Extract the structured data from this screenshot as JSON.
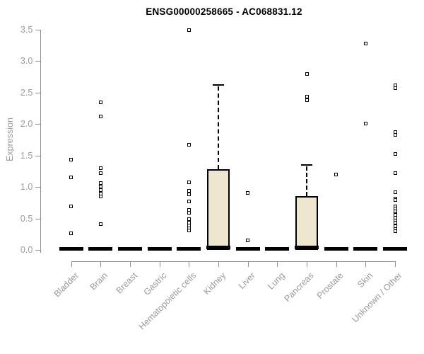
{
  "chart_data": {
    "type": "boxplot",
    "title": "ENSG00000258665 - AC068831.12",
    "ylabel": "Expression",
    "xlabel": "",
    "ylim": [
      0,
      3.5
    ],
    "ytick_labels": [
      "0.0",
      "0.5",
      "1.0",
      "1.5",
      "2.0",
      "2.5",
      "3.0",
      "3.5"
    ],
    "ytick_values": [
      0,
      0.5,
      1,
      1.5,
      2,
      2.5,
      3,
      3.5
    ],
    "grid": false,
    "legend": "none",
    "box_fill_color": "#EDE7CF",
    "box_border_color": "#000000",
    "axis_color": "#8f8f8f",
    "label_color": "#9a9a9a",
    "categories": [
      "Bladder",
      "Brain",
      "Breast",
      "Gastric",
      "Hematopoietic cells",
      "Kidney",
      "Liver",
      "Lung",
      "Pancreas",
      "Prostate",
      "Skin",
      "Unknown / Other"
    ],
    "series": [
      {
        "category": "Bladder",
        "median": 0,
        "q1": 0,
        "q3": 0,
        "whisker_low": 0,
        "whisker_high": 0,
        "points": [
          1.43,
          1.15,
          0.69,
          0.27
        ]
      },
      {
        "category": "Brain",
        "median": 0,
        "q1": 0,
        "q3": 0,
        "whisker_low": 0,
        "whisker_high": 0,
        "points": [
          2.35,
          2.12,
          1.3,
          1.22,
          1.07,
          1.01,
          0.95,
          0.9,
          0.85,
          0.41
        ]
      },
      {
        "category": "Breast",
        "median": 0,
        "q1": 0,
        "q3": 0,
        "whisker_low": 0,
        "whisker_high": 0,
        "points": []
      },
      {
        "category": "Gastric",
        "median": 0,
        "q1": 0,
        "q3": 0,
        "whisker_low": 0,
        "whisker_high": 0,
        "points": []
      },
      {
        "category": "Hematopoietic cells",
        "median": 0,
        "q1": 0,
        "q3": 0,
        "whisker_low": 0,
        "whisker_high": 0,
        "points": [
          3.49,
          1.67,
          1.08,
          0.94,
          0.89,
          0.77,
          0.64,
          0.59,
          0.49,
          0.44,
          0.39,
          0.35,
          0.31
        ]
      },
      {
        "category": "Kidney",
        "median": 0.02,
        "q1": 0,
        "q3": 1.28,
        "whisker_low": 0,
        "whisker_high": 2.62,
        "points": []
      },
      {
        "category": "Liver",
        "median": 0,
        "q1": 0,
        "q3": 0,
        "whisker_low": 0,
        "whisker_high": 0,
        "points": [
          0.91,
          0.15
        ]
      },
      {
        "category": "Lung",
        "median": 0,
        "q1": 0,
        "q3": 0,
        "whisker_low": 0,
        "whisker_high": 0,
        "points": []
      },
      {
        "category": "Pancreas",
        "median": 0.02,
        "q1": 0,
        "q3": 0.86,
        "whisker_low": 0,
        "whisker_high": 1.35,
        "points": [
          2.8,
          2.43,
          2.38
        ]
      },
      {
        "category": "Prostate",
        "median": 0,
        "q1": 0,
        "q3": 0,
        "whisker_low": 0,
        "whisker_high": 0,
        "points": [
          1.2
        ]
      },
      {
        "category": "Skin",
        "median": 0,
        "q1": 0,
        "q3": 0,
        "whisker_low": 0,
        "whisker_high": 0,
        "points": [
          3.28,
          2.01
        ]
      },
      {
        "category": "Unknown / Other",
        "median": 0,
        "q1": 0,
        "q3": 0,
        "whisker_low": 0,
        "whisker_high": 0,
        "points": [
          2.61,
          2.57,
          1.87,
          1.83,
          1.53,
          1.22,
          0.92,
          0.82,
          0.79,
          0.69,
          0.66,
          0.61,
          0.56,
          0.51,
          0.47,
          0.44,
          0.38,
          0.34,
          0.3
        ]
      }
    ]
  }
}
